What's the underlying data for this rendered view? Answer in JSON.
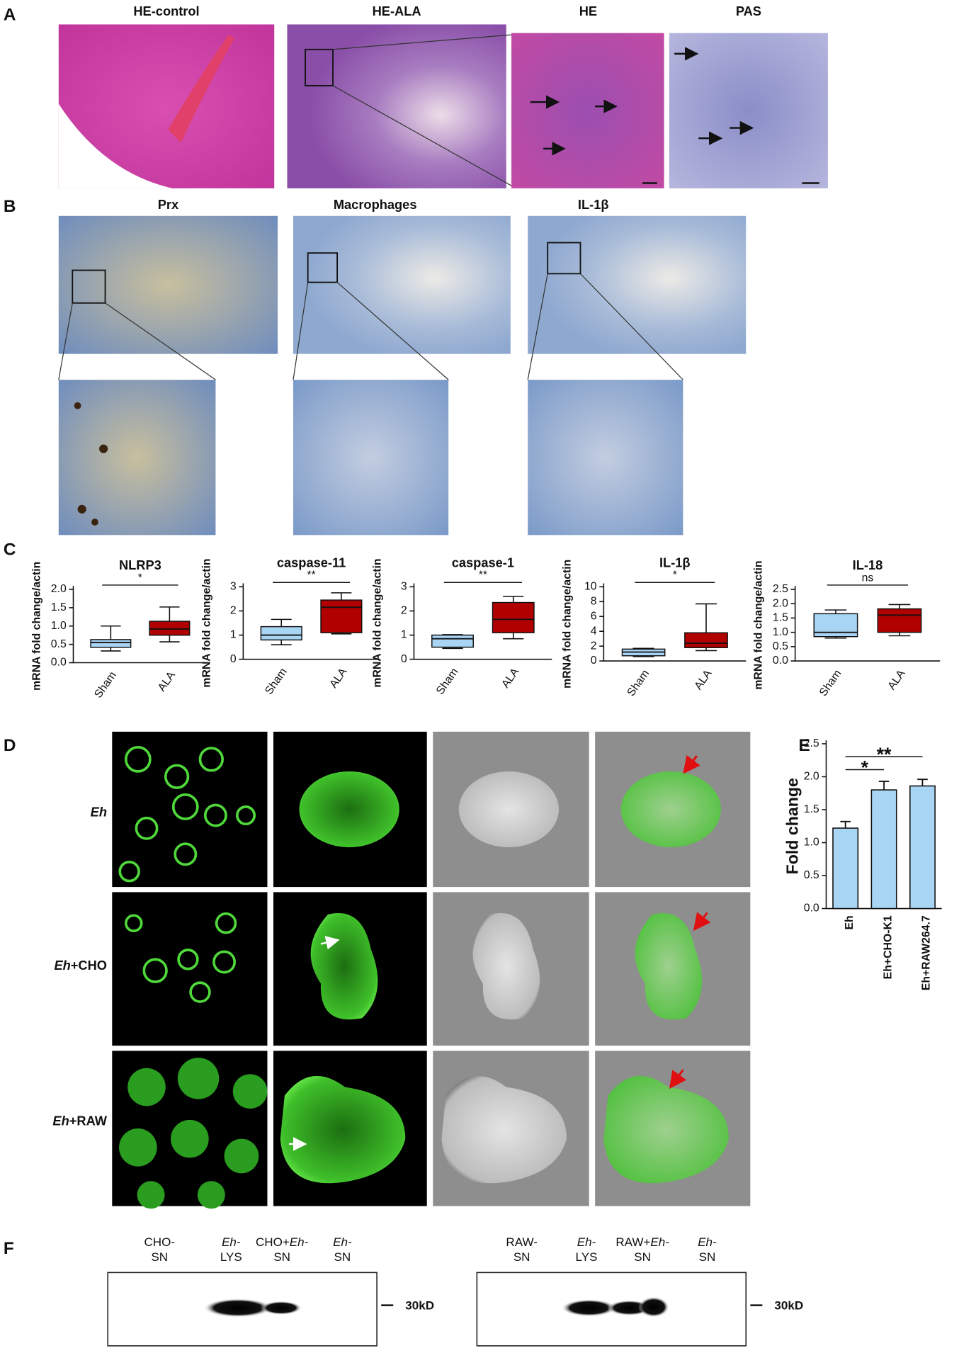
{
  "panel_a": {
    "label": "A",
    "titles": [
      "HE-control",
      "HE-ALA",
      "HE",
      "PAS"
    ]
  },
  "panel_b": {
    "label": "B",
    "titles": [
      "Prx",
      "Macrophages",
      "IL-1β"
    ]
  },
  "panel_c": {
    "label": "C"
  },
  "panel_d": {
    "label": "D",
    "rows": [
      [
        {
          "text": "Eh",
          "italic": true
        }
      ],
      [
        {
          "text": "Eh",
          "italic": true
        },
        {
          "text": "+CHO",
          "italic": false
        }
      ],
      [
        {
          "text": "Eh",
          "italic": true
        },
        {
          "text": "+RAW",
          "italic": false
        }
      ]
    ]
  },
  "panel_e": {
    "label": "E"
  },
  "panel_f": {
    "label": "F",
    "blots": [
      {
        "marker": "30kD",
        "lanes": [
          {
            "top": [
              {
                "text": "CHO-",
                "italic": false
              }
            ],
            "bottom": "SN"
          },
          {
            "top": [
              {
                "text": "Eh-",
                "italic": true
              }
            ],
            "bottom": "LYS"
          },
          {
            "top": [
              {
                "text": "CHO+",
                "italic": false
              },
              {
                "text": "Eh-",
                "italic": true
              }
            ],
            "bottom": "SN"
          },
          {
            "top": [
              {
                "text": "Eh-",
                "italic": true
              }
            ],
            "bottom": "SN"
          }
        ]
      },
      {
        "marker": "30kD",
        "lanes": [
          {
            "top": [
              {
                "text": "RAW-",
                "italic": false
              }
            ],
            "bottom": "SN"
          },
          {
            "top": [
              {
                "text": "Eh-",
                "italic": true
              }
            ],
            "bottom": "LYS"
          },
          {
            "top": [
              {
                "text": "RAW+",
                "italic": false
              },
              {
                "text": "Eh-",
                "italic": true
              }
            ],
            "bottom": "SN"
          },
          {
            "top": [
              {
                "text": "Eh-",
                "italic": true
              }
            ],
            "bottom": "SN"
          }
        ]
      }
    ]
  },
  "chart_data": [
    {
      "type": "box",
      "title": "NLRP3",
      "y_label": "mRNA fold change/actin",
      "categories": [
        "Sham",
        "ALA"
      ],
      "significance": "*",
      "boxes": [
        {
          "color": "#a9d5f5",
          "min": 0.32,
          "q1": 0.42,
          "median": 0.55,
          "q3": 0.63,
          "max": 1.0
        },
        {
          "color": "#b00000",
          "min": 0.57,
          "q1": 0.75,
          "median": 0.92,
          "q3": 1.13,
          "max": 1.52
        }
      ],
      "ylim": [
        0,
        2
      ],
      "yticks": [
        {
          "value": 0,
          "label": "0.0"
        },
        {
          "value": 0.5,
          "label": "0.5"
        },
        {
          "value": 1,
          "label": "1.0"
        },
        {
          "value": 1.5,
          "label": "1.5"
        },
        {
          "value": 2,
          "label": "2.0"
        }
      ]
    },
    {
      "type": "box",
      "title": "caspase-11",
      "y_label": "mRNA fold change/actin",
      "categories": [
        "Sham",
        "ALA"
      ],
      "significance": "**",
      "boxes": [
        {
          "color": "#a9d5f5",
          "min": 0.6,
          "q1": 0.8,
          "median": 1.0,
          "q3": 1.35,
          "max": 1.65
        },
        {
          "color": "#b00000",
          "min": 1.05,
          "q1": 1.1,
          "median": 2.15,
          "q3": 2.45,
          "max": 2.75
        }
      ],
      "ylim": [
        0,
        3
      ],
      "yticks": [
        0,
        1,
        2,
        3
      ]
    },
    {
      "type": "box",
      "title": "caspase-1",
      "y_label": "mRNA fold change/actin",
      "categories": [
        "Sham",
        "ALA"
      ],
      "significance": "**",
      "boxes": [
        {
          "color": "#a9d5f5",
          "min": 0.45,
          "q1": 0.5,
          "median": 0.85,
          "q3": 1.0,
          "max": 1.02
        },
        {
          "color": "#b00000",
          "min": 0.85,
          "q1": 1.1,
          "median": 1.65,
          "q3": 2.35,
          "max": 2.6
        }
      ],
      "ylim": [
        0,
        3
      ],
      "yticks": [
        0,
        1,
        2,
        3
      ]
    },
    {
      "type": "box",
      "title": "IL-1β",
      "y_label": "mRNA fold change/actin",
      "categories": [
        "Sham",
        "ALA"
      ],
      "significance": "*",
      "boxes": [
        {
          "color": "#a9d5f5",
          "min": 0.6,
          "q1": 0.7,
          "median": 1.2,
          "q3": 1.6,
          "max": 1.7
        },
        {
          "color": "#b00000",
          "min": 1.4,
          "q1": 1.8,
          "median": 2.4,
          "q3": 3.8,
          "max": 7.7
        }
      ],
      "ylim": [
        0,
        10
      ],
      "yticks": [
        0,
        2,
        4,
        6,
        8,
        10
      ]
    },
    {
      "type": "box",
      "title": "IL-18",
      "y_label": "mRNA fold change/actin",
      "categories": [
        "Sham",
        "ALA"
      ],
      "significance": "ns",
      "boxes": [
        {
          "color": "#a9d5f5",
          "min": 0.8,
          "q1": 0.85,
          "median": 1.0,
          "q3": 1.65,
          "max": 1.78
        },
        {
          "color": "#b00000",
          "min": 0.88,
          "q1": 1.0,
          "median": 1.6,
          "q3": 1.82,
          "max": 1.97
        }
      ],
      "ylim": [
        0,
        2.5
      ],
      "yticks": [
        {
          "value": 0,
          "label": "0.0"
        },
        {
          "value": 0.5,
          "label": "0.5"
        },
        {
          "value": 1,
          "label": "1.0"
        },
        {
          "value": 1.5,
          "label": "1.5"
        },
        {
          "value": 2,
          "label": "2.0"
        },
        {
          "value": 2.5,
          "label": "2.5"
        }
      ]
    },
    {
      "type": "bar",
      "y_label": "Fold change",
      "categories": [
        "Eh",
        "Eh+CHO-K1",
        "Eh+RAW264.7"
      ],
      "values": [
        1.22,
        1.8,
        1.86
      ],
      "errors": [
        0.1,
        0.13,
        0.1
      ],
      "color": "#a9d5f5",
      "comparisons": [
        {
          "label": "*",
          "from": 0,
          "to": 1
        },
        {
          "label": "**",
          "from": 0,
          "to": 2
        }
      ],
      "ylim": [
        0,
        2.5
      ],
      "yticks": [
        {
          "value": 0,
          "label": "0.0"
        },
        {
          "value": 0.5,
          "label": "0.5"
        },
        {
          "value": 1,
          "label": "1.0"
        },
        {
          "value": 1.5,
          "label": "1.5"
        },
        {
          "value": 2,
          "label": "2.0"
        },
        {
          "value": 2.5,
          "label": "2.5"
        }
      ]
    }
  ]
}
